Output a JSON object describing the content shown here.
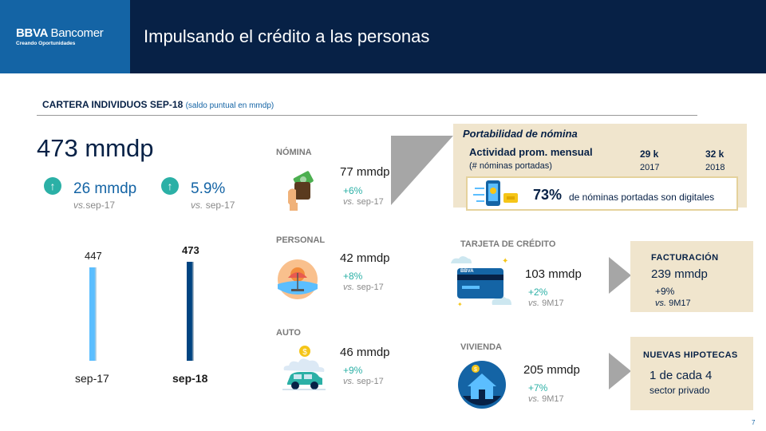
{
  "header": {
    "logo_brand": "BBVA",
    "logo_name": "Bancomer",
    "logo_tagline": "Creando Oportunidades",
    "title": "Impulsando el crédito a las personas"
  },
  "section": {
    "title": "CARTERA INDIVIDUOS SEP-18",
    "subtitle": "(saldo puntual en mmdp)"
  },
  "summary": {
    "total": "473 mmdp",
    "kpis": [
      {
        "value": "26 mmdp",
        "vs_prefix": "vs.",
        "vs_period": "sep-17"
      },
      {
        "value": "5.9%",
        "vs_prefix": "vs.",
        "vs_period": "sep-17"
      }
    ]
  },
  "chart_data": {
    "type": "bar",
    "title": "",
    "categories": [
      "sep-17",
      "sep-18"
    ],
    "values": [
      447,
      473
    ],
    "value_labels": [
      "447",
      "473"
    ],
    "ylim": [
      0,
      473
    ],
    "colors": [
      "#5bbeff",
      "#004481"
    ],
    "xlabel": "",
    "ylabel": "",
    "grid": false
  },
  "categories": [
    {
      "label": "NÓMINA",
      "amount": "77 mmdp",
      "growth": "+6%",
      "vs_prefix": "vs.",
      "vs_period": "sep-17"
    },
    {
      "label": "PERSONAL",
      "amount": "42 mmdp",
      "growth": "+8%",
      "vs_prefix": "vs.",
      "vs_period": "sep-17"
    },
    {
      "label": "AUTO",
      "amount": "46 mmdp",
      "growth": "+9%",
      "vs_prefix": "vs.",
      "vs_period": "sep-17"
    }
  ],
  "portabilidad": {
    "title": "Portabilidad de nómina",
    "activity_label": "Actividad prom. mensual",
    "activity_sub": "(# nóminas portadas)",
    "years": [
      {
        "value": "29 k",
        "year": "2017"
      },
      {
        "value": "32 k",
        "year": "2018"
      }
    ],
    "digital_pct": "73%",
    "digital_text": "de nóminas portadas son digitales"
  },
  "tarjeta": {
    "label": "TARJETA  DE  CRÉDITO",
    "amount": "103 mmdp",
    "growth": "+2%",
    "vs_prefix": "vs.",
    "vs_period": "9M17",
    "card_brand": "BBVA"
  },
  "facturacion": {
    "title": "FACTURACIÓN",
    "amount": "239 mmdp",
    "growth": "+9%",
    "vs_prefix": "vs.",
    "vs_period": "9M17"
  },
  "vivienda": {
    "label": "VIVIENDA",
    "amount": "205 mmdp",
    "growth": "+7%",
    "vs_prefix": "vs.",
    "vs_period": "9M17"
  },
  "hipotecas": {
    "title": "NUEVAS HIPOTECAS",
    "ratio": "1 de cada 4",
    "sub": "sector privado"
  },
  "page_number": "7",
  "colors": {
    "navy": "#072146",
    "blue": "#1464a5",
    "light_blue": "#5bbeff",
    "teal": "#2bb0a6",
    "sand": "#f0e5cd",
    "gray": "#8a8a8a"
  }
}
